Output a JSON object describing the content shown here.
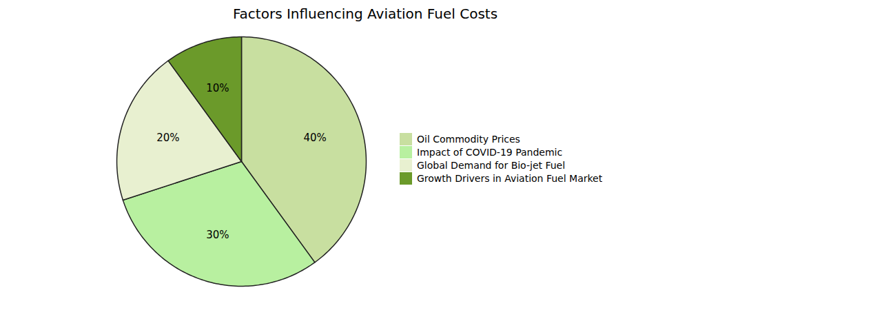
{
  "chart_data": {
    "type": "pie",
    "title": "Factors Influencing Aviation Fuel Costs",
    "categories": [
      "Oil Commodity Prices",
      "Impact of COVID-19 Pandemic",
      "Global Demand for Bio-jet Fuel",
      "Growth Drivers in Aviation Fuel Market"
    ],
    "values": [
      40,
      30,
      20,
      10
    ],
    "value_labels": [
      "40%",
      "30%",
      "20%",
      "10%"
    ],
    "colors": [
      "#c8dfa0",
      "#b8f0a0",
      "#e8f0d0",
      "#6b9a2a"
    ],
    "data_labels": true,
    "legend": "right",
    "tick_labels": false
  }
}
